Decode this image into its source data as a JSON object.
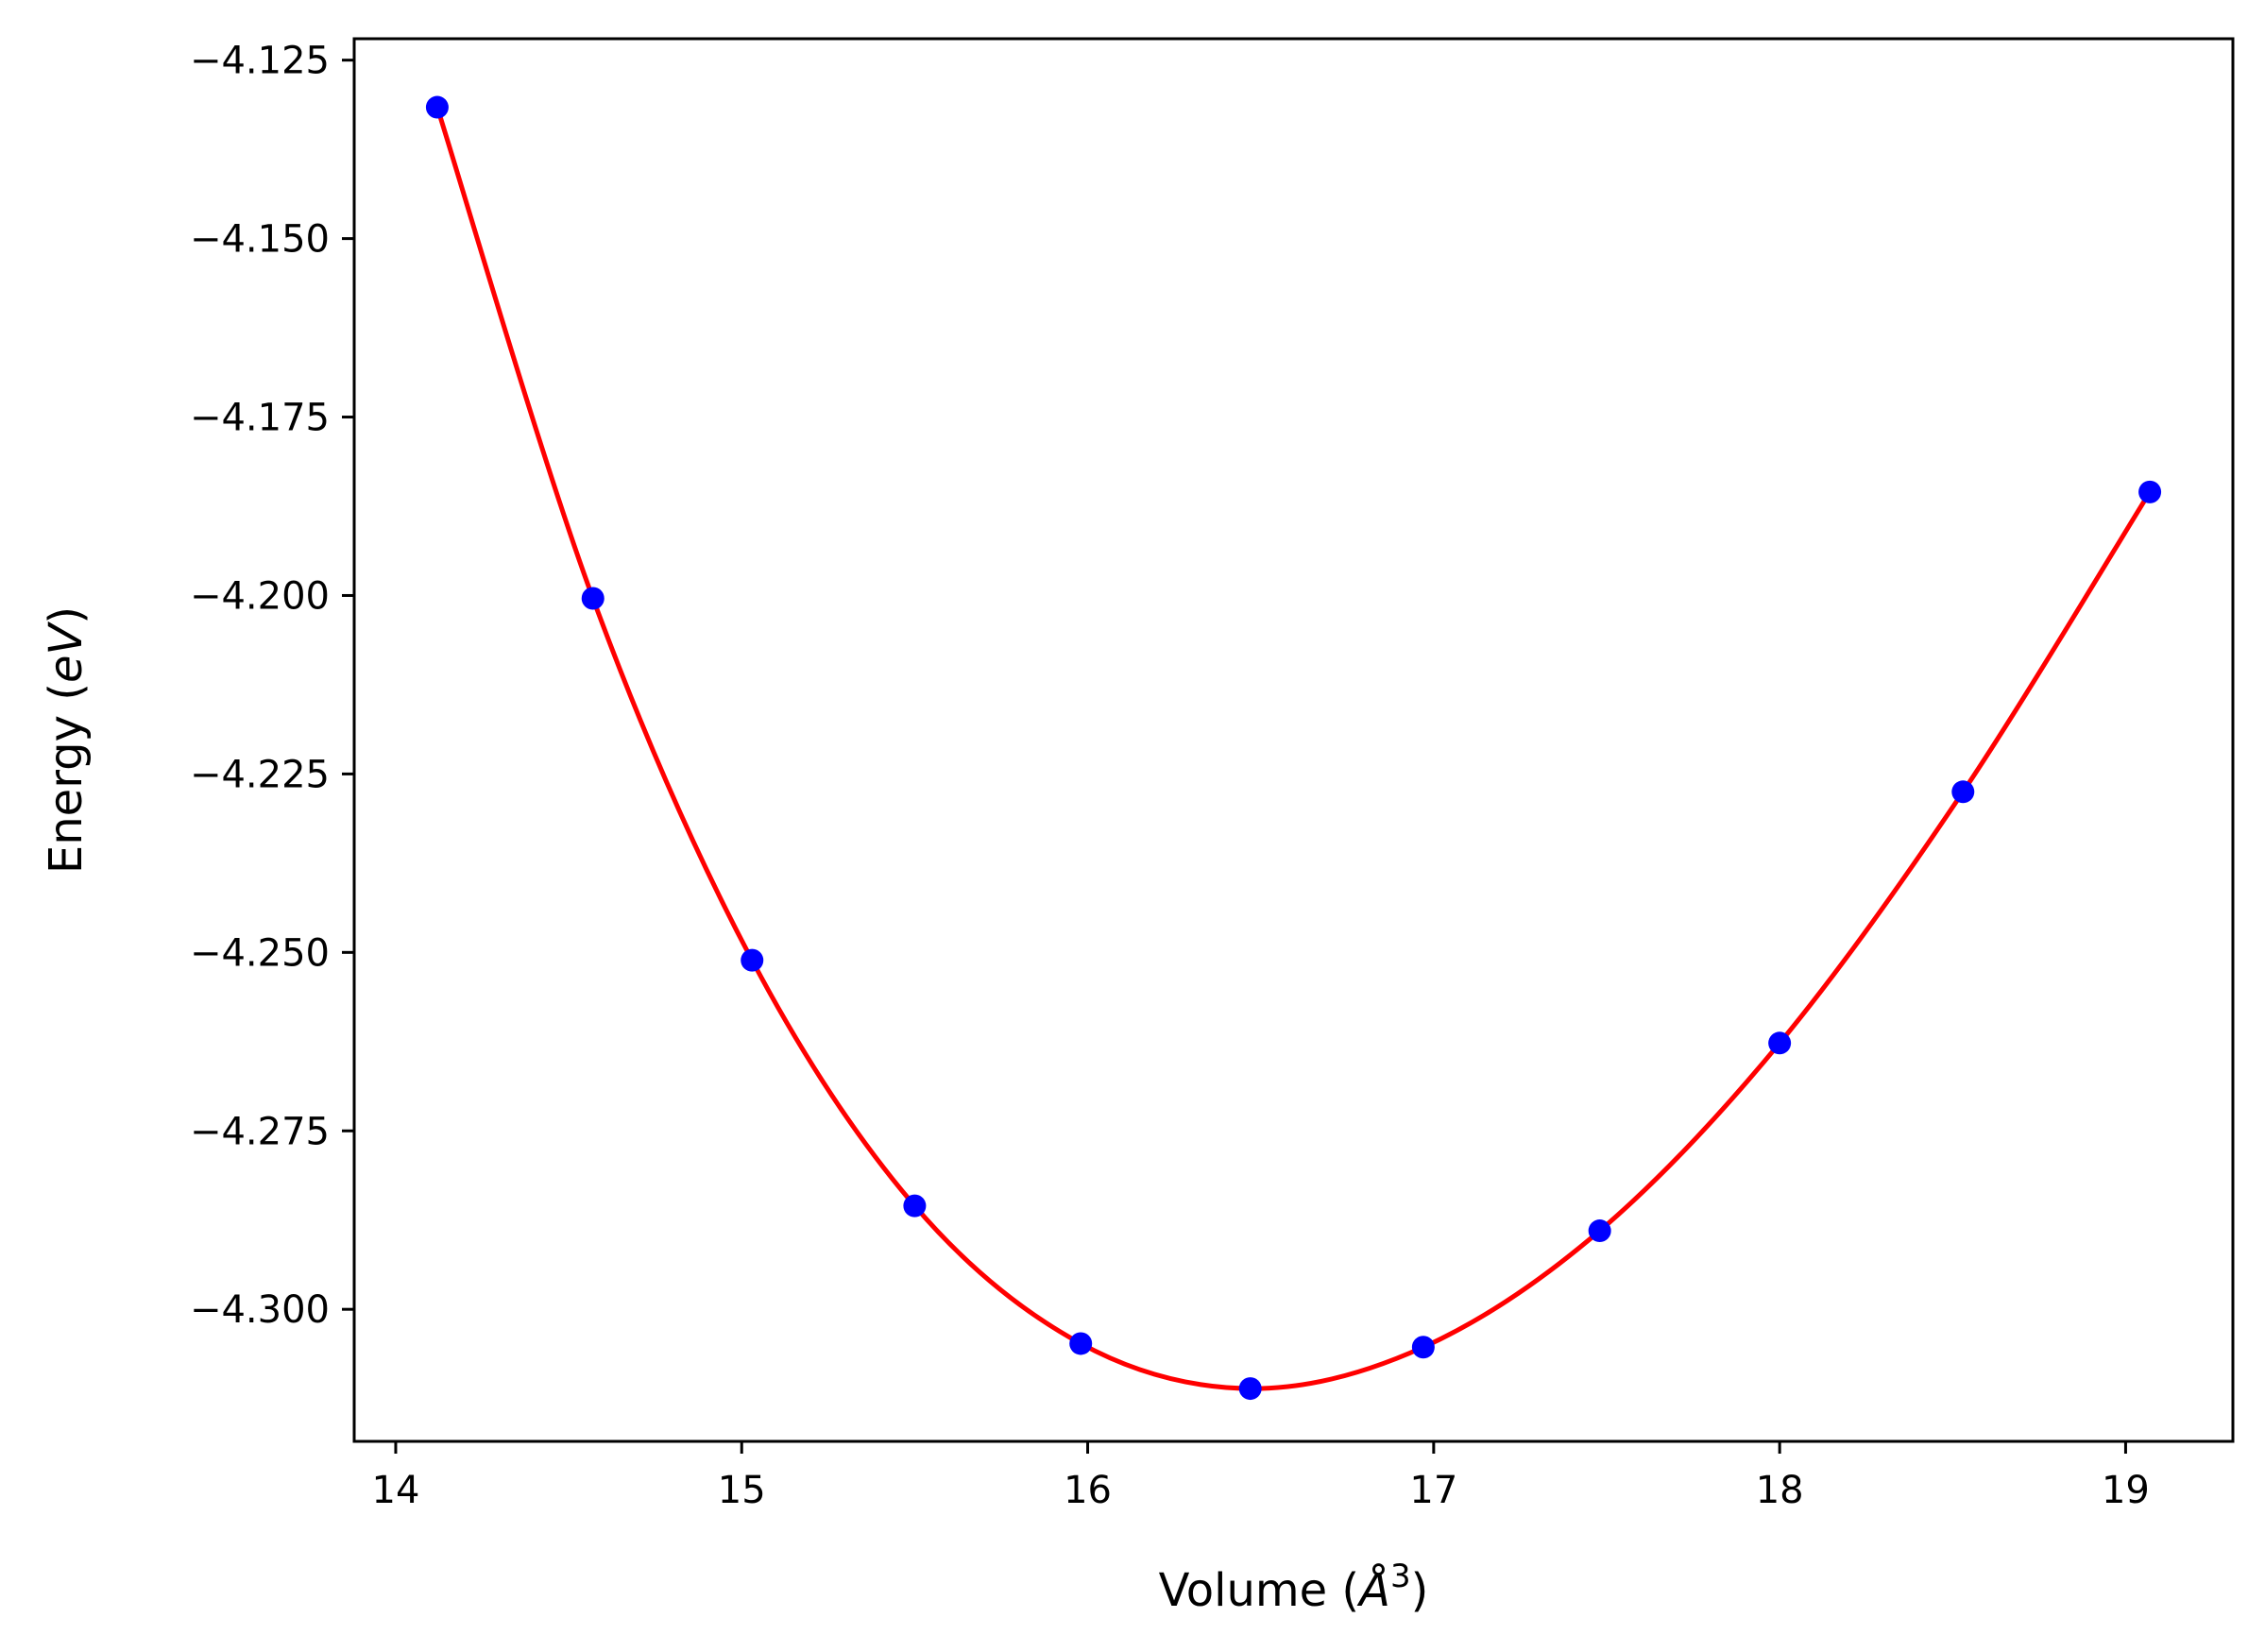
{
  "chart_data": {
    "type": "scatter",
    "title": "",
    "xlabel_prefix": "Volume (",
    "xlabel_symbol": "Å",
    "xlabel_exponent": "3",
    "xlabel_suffix": ")",
    "ylabel_prefix": "Energy (",
    "ylabel_unit": "eV",
    "ylabel_suffix": ")",
    "xlim": [
      13.88,
      19.31
    ],
    "ylim": [
      -4.3185,
      -4.122
    ],
    "xticks": [
      14,
      15,
      16,
      17,
      18,
      19
    ],
    "xtick_labels": [
      "14",
      "15",
      "16",
      "17",
      "18",
      "19"
    ],
    "yticks": [
      -4.125,
      -4.15,
      -4.175,
      -4.2,
      -4.225,
      -4.25,
      -4.275,
      -4.3
    ],
    "ytick_labels": [
      "−4.125",
      "−4.150",
      "−4.175",
      "−4.200",
      "−4.225",
      "−4.250",
      "−4.275",
      "−4.300"
    ],
    "grid": false,
    "legend": "none",
    "series": [
      {
        "kind": "points",
        "color": "#0000ff",
        "x": [
          14.12,
          14.57,
          15.03,
          15.5,
          15.98,
          16.47,
          16.97,
          17.48,
          18.0,
          18.53,
          19.07
        ],
        "y": [
          -4.1316,
          -4.2004,
          -4.2511,
          -4.2855,
          -4.3048,
          -4.3111,
          -4.3053,
          -4.289,
          -4.2627,
          -4.2275,
          -4.1855
        ]
      },
      {
        "kind": "fit-curve",
        "color": "#ff0000",
        "x": [
          14.12,
          14.57,
          15.03,
          15.5,
          15.98,
          16.47,
          16.97,
          17.48,
          18.0,
          18.53,
          19.07
        ],
        "y": [
          -4.1316,
          -4.2004,
          -4.2511,
          -4.2855,
          -4.3048,
          -4.3111,
          -4.3053,
          -4.289,
          -4.2627,
          -4.2275,
          -4.1855
        ]
      }
    ]
  }
}
